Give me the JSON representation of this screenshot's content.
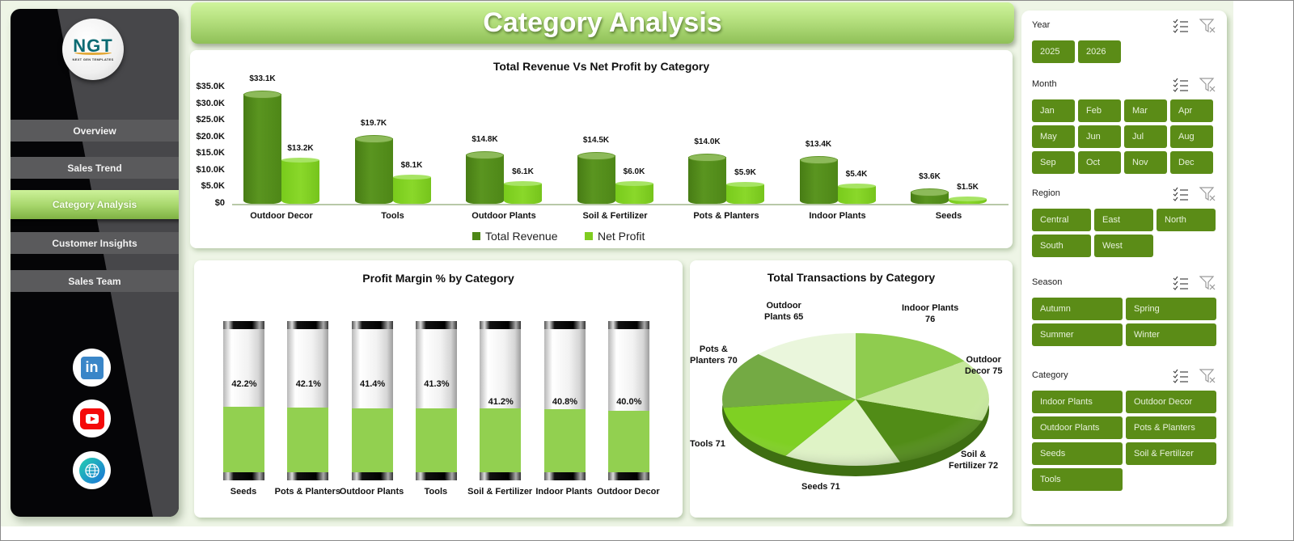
{
  "header": {
    "title": "Category Analysis"
  },
  "sidebar": {
    "logo": {
      "text": "NGT",
      "subtext": "NEXT GEN TEMPLATES"
    },
    "items": [
      {
        "label": "Overview",
        "active": false
      },
      {
        "label": "Sales Trend",
        "active": false
      },
      {
        "label": "Category Analysis",
        "active": true
      },
      {
        "label": "Customer Insights",
        "active": false
      },
      {
        "label": "Sales Team",
        "active": false
      }
    ],
    "social": [
      {
        "icon": "linkedin-icon",
        "glyph": "in"
      },
      {
        "icon": "youtube-icon"
      },
      {
        "icon": "globe-icon"
      }
    ]
  },
  "colors": {
    "revenue": "#4e8717",
    "net_profit": "#7fcc20",
    "margin_fill": "#92d050",
    "chip": "#5b8c17",
    "header_top": "#cff49c",
    "header_bottom": "#8fc058"
  },
  "charts": {
    "revenue_profit": {
      "title": "Total Revenue Vs  Net Profit by Category",
      "y_ticks": [
        "$35.0K",
        "$30.0K",
        "$25.0K",
        "$20.0K",
        "$15.0K",
        "$10.0K",
        "$5.0K",
        "$0"
      ],
      "legend": [
        "Total Revenue",
        "Net Profit"
      ]
    },
    "margin": {
      "title": "Profit Margin % by Category"
    },
    "transactions": {
      "title": "Total Transactions by Category"
    }
  },
  "chart_data": [
    {
      "type": "bar",
      "title": "Total Revenue Vs  Net Profit by Category",
      "categories": [
        "Outdoor Decor",
        "Tools",
        "Outdoor Plants",
        "Soil & Fertilizer",
        "Pots & Planters",
        "Indoor Plants",
        "Seeds"
      ],
      "series": [
        {
          "name": "Total Revenue",
          "values": [
            33.1,
            19.7,
            14.8,
            14.5,
            14.0,
            13.4,
            3.6
          ],
          "labels": [
            "$33.1K",
            "$19.7K",
            "$14.8K",
            "$14.5K",
            "$14.0K",
            "$13.4K",
            "$3.6K"
          ]
        },
        {
          "name": "Net Profit",
          "values": [
            13.2,
            8.1,
            6.1,
            6.0,
            5.9,
            5.4,
            1.5
          ],
          "labels": [
            "$13.2K",
            "$8.1K",
            "$6.1K",
            "$6.0K",
            "$5.9K",
            "$5.4K",
            "$1.5K"
          ]
        }
      ],
      "ylabel": "",
      "xlabel": "",
      "ylim": [
        0,
        35
      ],
      "unit": "$K",
      "legend_position": "bottom",
      "grid": false
    },
    {
      "type": "bar",
      "title": "Profit Margin % by Category",
      "categories": [
        "Seeds",
        "Pots & Planters",
        "Outdoor Plants",
        "Tools",
        "Soil & Fertilizer",
        "Indoor Plants",
        "Outdoor Decor"
      ],
      "values": [
        42.2,
        42.1,
        41.4,
        41.3,
        41.2,
        40.8,
        40.0
      ],
      "labels": [
        "42.2%",
        "42.1%",
        "41.4%",
        "41.3%",
        "41.2%",
        "40.8%",
        "40.0%"
      ],
      "ylim": [
        0,
        100
      ],
      "unit": "%"
    },
    {
      "type": "pie",
      "title": "Total Transactions by Category",
      "categories": [
        "Indoor Plants",
        "Outdoor Decor",
        "Soil & Fertilizer",
        "Seeds",
        "Tools",
        "Pots & Planters",
        "Outdoor Plants"
      ],
      "values": [
        76,
        75,
        72,
        71,
        71,
        70,
        65
      ],
      "labels": [
        "Indoor Plants\n76",
        "Outdoor\nDecor 75",
        "Soil &\nFertilizer 72",
        "Seeds 71",
        "Tools 71",
        "Pots &\nPlanters 70",
        "Outdoor\nPlants 65"
      ]
    }
  ],
  "slicers": [
    {
      "title": "Year",
      "items": [
        "2025",
        "2026"
      ]
    },
    {
      "title": "Month",
      "items": [
        "Jan",
        "Feb",
        "Mar",
        "Apr",
        "May",
        "Jun",
        "Jul",
        "Aug",
        "Sep",
        "Oct",
        "Nov",
        "Dec"
      ]
    },
    {
      "title": "Region",
      "items": [
        "Central",
        "East",
        "North",
        "South",
        "West"
      ]
    },
    {
      "title": "Season",
      "items": [
        "Autumn",
        "Spring",
        "Summer",
        "Winter"
      ]
    },
    {
      "title": "Category",
      "items": [
        "Indoor Plants",
        "Outdoor Decor",
        "Outdoor Plants",
        "Pots & Planters",
        "Seeds",
        "Soil & Fertilizer",
        "Tools"
      ]
    }
  ]
}
